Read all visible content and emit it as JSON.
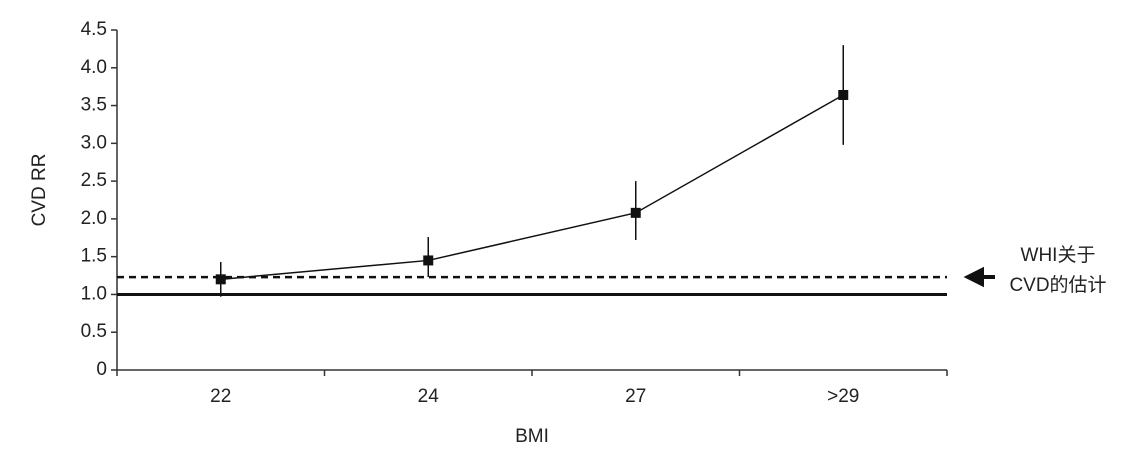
{
  "chart_data": {
    "type": "line",
    "x_label": "BMI",
    "y_label": "CVD RR",
    "categories": [
      "22",
      "24",
      "27",
      ">29"
    ],
    "values": [
      1.2,
      1.45,
      2.08,
      3.64
    ],
    "ci_low": [
      0.97,
      1.23,
      1.72,
      2.98
    ],
    "ci_high": [
      1.43,
      1.76,
      2.5,
      4.3
    ],
    "color": "#111111",
    "ylim": [
      0,
      4.5
    ],
    "yticks": [
      0,
      0.5,
      {
        "value": 1,
        "label": "1.0"
      },
      1.5,
      {
        "value": 2,
        "label": "2.0"
      },
      2.5,
      {
        "value": 3,
        "label": "3.0"
      },
      3.5,
      {
        "value": 4,
        "label": "4.0"
      },
      4.5
    ],
    "reference_lines": [
      {
        "value": 1,
        "style": "solid"
      },
      {
        "value": 1.23,
        "style": "dashed"
      }
    ],
    "annotation": [
      "WHI关于",
      "CVD的估计"
    ]
  }
}
